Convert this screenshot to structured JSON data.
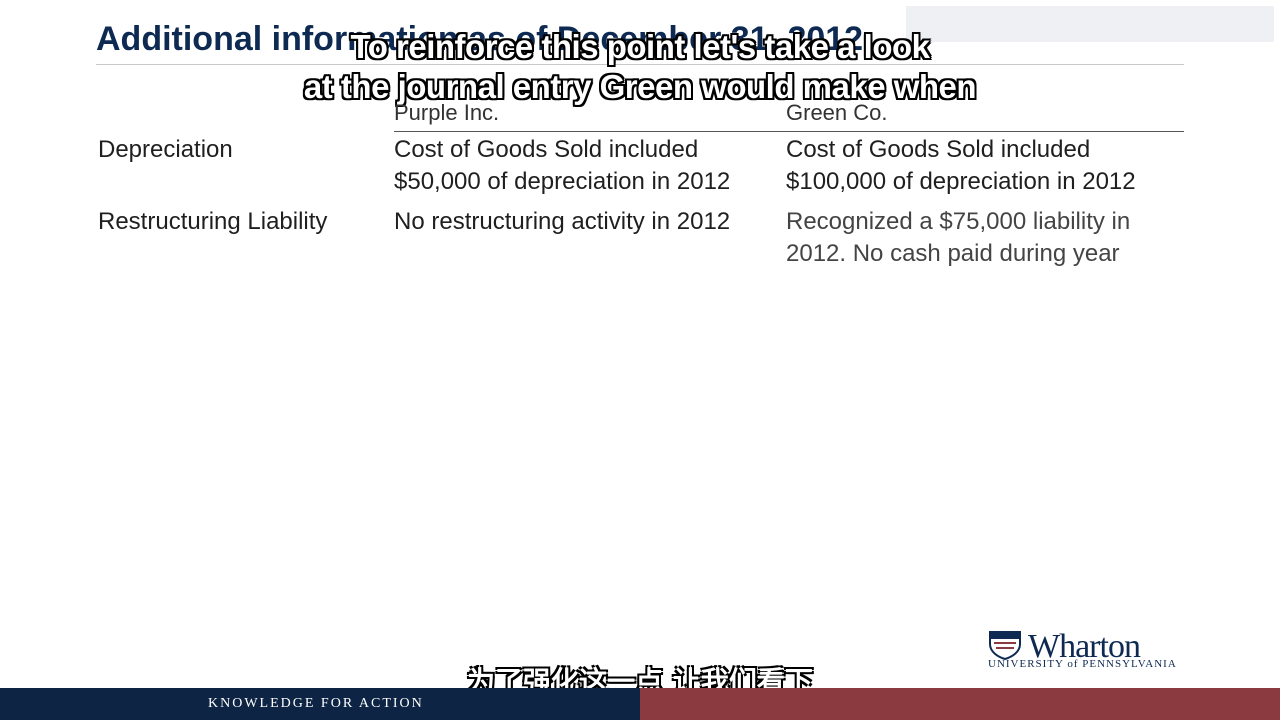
{
  "slide": {
    "title": "Additional information as of December 31, 2012",
    "columns": [
      "Purple Inc.",
      "Green Co."
    ],
    "rows": [
      {
        "label": "Depreciation",
        "purple": [
          "Cost of Goods Sold included",
          "$50,000 of depreciation in 2012"
        ],
        "green": [
          "Cost of Goods Sold included",
          "$100,000 of depreciation in 2012"
        ]
      },
      {
        "label": "Restructuring Liability",
        "purple": [
          "No restructuring activity in 2012"
        ],
        "green": [
          "Recognized a $75,000 liability in",
          "2012.  No cash paid during year"
        ]
      }
    ]
  },
  "subtitles": {
    "english_line1": "To reinforce this point let's take a look",
    "english_line2": "at the journal entry Green would make when",
    "chinese": "为了强化这一点 让我们看下"
  },
  "branding": {
    "logo_name": "Wharton",
    "logo_sub": "UNIVERSITY of PENNSYLVANIA",
    "tagline": "KNOWLEDGE FOR ACTION",
    "colors": {
      "navy": "#0d2444",
      "maroon": "#8b3a3f"
    }
  }
}
